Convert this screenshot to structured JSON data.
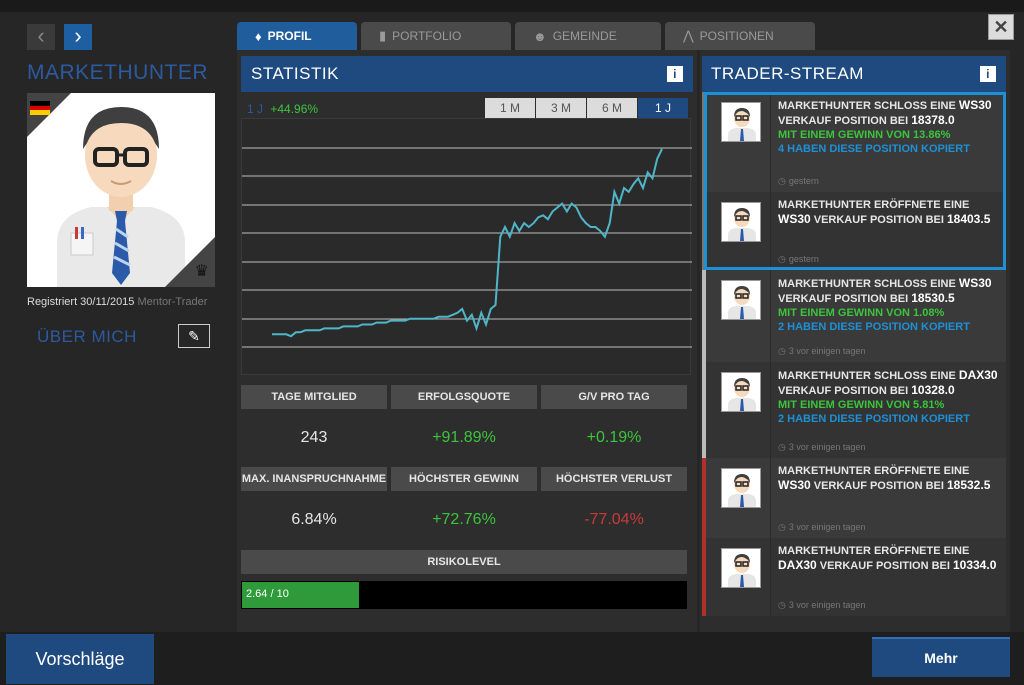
{
  "profile": {
    "name": "MARKETHUNTER",
    "registered_label": "Registriert 30/11/2015",
    "role_suffix": "Mentor-Trader",
    "about_me": "ÜBER MICH"
  },
  "tabs": [
    {
      "label": "PROFIL",
      "icon": "tie-icon",
      "active": true
    },
    {
      "label": "PORTFOLIO",
      "icon": "bars-icon",
      "active": false
    },
    {
      "label": "GEMEINDE",
      "icon": "people-icon",
      "active": false
    },
    {
      "label": "POSITIONEN",
      "icon": "chart-icon",
      "active": false
    }
  ],
  "statistik": {
    "title": "STATISTIK",
    "perf_label": "1 J",
    "perf_value": "+44.96%",
    "ranges": [
      "1 M",
      "3 M",
      "6 M",
      "1 J"
    ],
    "active_range": "1 J",
    "stats": [
      {
        "label": "TAGE MITGLIED",
        "value": "243",
        "color": "#e6e6e6"
      },
      {
        "label": "ERFOLGSQUOTE",
        "value": "+91.89%",
        "color": "#3cc43c"
      },
      {
        "label": "G/V PRO TAG",
        "value": "+0.19%",
        "color": "#3cc43c"
      },
      {
        "label": "MAX. INANSPRUCHNAHME",
        "value": "6.84%",
        "color": "#e6e6e6"
      },
      {
        "label": "HÖCHSTER GEWINN",
        "value": "+72.76%",
        "color": "#3cc43c"
      },
      {
        "label": "HÖCHSTER VERLUST",
        "value": "-77.04%",
        "color": "#c93a3a"
      }
    ],
    "risk_label": "RISIKOLEVEL",
    "risk_text": "2.64 / 10",
    "risk_value": 0.264
  },
  "chart_data": {
    "type": "line",
    "series": [
      {
        "values": [
          0.05,
          0.05,
          0.05,
          0.05,
          0.04,
          0.06,
          0.06,
          0.07,
          0.07,
          0.07,
          0.07,
          0.08,
          0.08,
          0.08,
          0.08,
          0.09,
          0.09,
          0.09,
          0.09,
          0.1,
          0.1,
          0.1,
          0.11,
          0.11,
          0.11,
          0.12,
          0.12,
          0.12,
          0.12,
          0.13,
          0.13,
          0.13,
          0.13,
          0.13,
          0.13,
          0.14,
          0.14,
          0.14,
          0.15,
          0.16,
          0.18,
          0.12,
          0.15,
          0.08,
          0.16,
          0.1,
          0.18,
          0.2,
          0.55,
          0.6,
          0.55,
          0.62,
          0.58,
          0.62,
          0.6,
          0.62,
          0.65,
          0.66,
          0.64,
          0.68,
          0.7,
          0.72,
          0.68,
          0.72,
          0.7,
          0.65,
          0.62,
          0.6,
          0.6,
          0.58,
          0.55,
          0.62,
          0.78,
          0.72,
          0.8,
          0.78,
          0.82,
          0.85,
          0.8,
          0.88,
          0.85,
          0.95,
          1.0
        ]
      }
    ],
    "ylim": [
      0,
      1
    ],
    "grid": true
  },
  "stream": {
    "title": "TRADER-STREAM",
    "items": [
      {
        "line1": "MARKETHUNTER SCHLOSS EINE ",
        "bold1": "WS30",
        "line2": " VERKAUF POSITION BEI ",
        "bold2": "18378.0",
        "green": "MIT EINEM GEWINN VON 13.86%",
        "blue": "4 HABEN DIESE POSITION KOPIERT",
        "time": "gestern",
        "border": "#777",
        "highlight": true
      },
      {
        "line1": "MARKETHUNTER ERÖFFNETE EINE ",
        "bold1": "WS30",
        "line2": " VERKAUF POSITION BEI ",
        "bold2": "18403.5",
        "green": "",
        "blue": "",
        "time": "gestern",
        "border": "#777",
        "highlight": true
      },
      {
        "line1": "MARKETHUNTER SCHLOSS EINE ",
        "bold1": "WS30",
        "line2": " VERKAUF POSITION BEI ",
        "bold2": "18530.5",
        "green": "MIT EINEM GEWINN VON 1.08%",
        "blue": "2 HABEN DIESE POSITION KOPIERT",
        "time": "3 vor einigen tagen",
        "border": "#bbb",
        "highlight": false
      },
      {
        "line1": "MARKETHUNTER SCHLOSS EINE ",
        "bold1": "DAX30",
        "line2": " VERKAUF POSITION BEI ",
        "bold2": "10328.0",
        "green": "MIT EINEM GEWINN VON 5.81%",
        "blue": "2 HABEN DIESE POSITION KOPIERT",
        "time": "3 vor einigen tagen",
        "border": "#bbb",
        "highlight": false
      },
      {
        "line1": "MARKETHUNTER ERÖFFNETE EINE ",
        "bold1": "WS30",
        "line2": " VERKAUF POSITION BEI ",
        "bold2": "18532.5",
        "green": "",
        "blue": "",
        "time": "3 vor einigen tagen",
        "border": "#b0302a",
        "highlight": false
      },
      {
        "line1": "MARKETHUNTER ERÖFFNETE EINE ",
        "bold1": "DAX30",
        "line2": " VERKAUF POSITION BEI ",
        "bold2": "10334.0",
        "green": "",
        "blue": "",
        "time": "3 vor einigen tagen",
        "border": "#b0302a",
        "highlight": false
      }
    ]
  },
  "footer": {
    "suggestions": "Vorschläge",
    "more": "Mehr"
  },
  "colors": {
    "accent": "#1f4a80",
    "positive": "#3cc43c",
    "negative": "#c93a3a",
    "link": "#1e90d6"
  }
}
